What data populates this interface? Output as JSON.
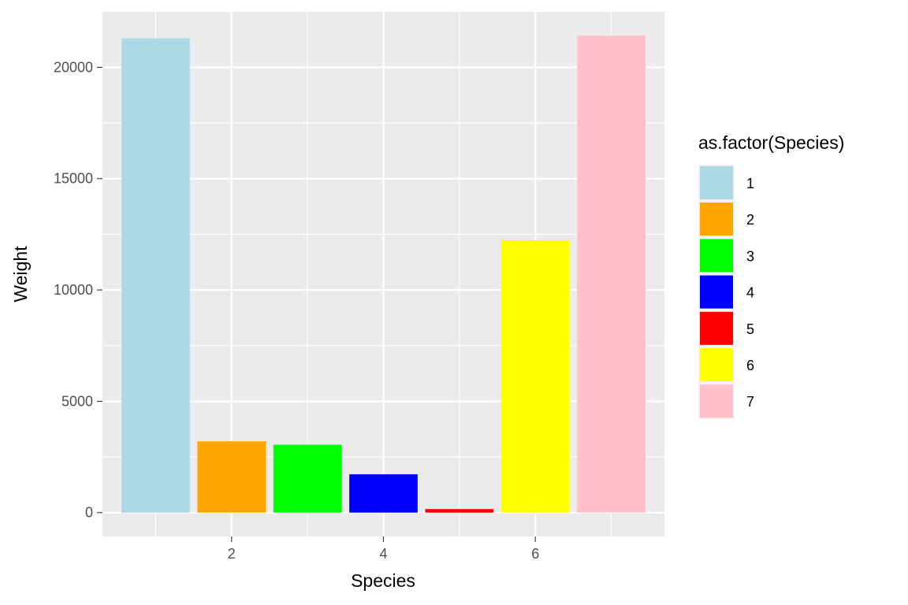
{
  "chart_data": {
    "type": "bar",
    "x": [
      1,
      2,
      3,
      4,
      5,
      6,
      7
    ],
    "values": [
      21300,
      3200,
      3050,
      1720,
      160,
      12230,
      21420
    ],
    "colors": [
      "#ADD8E6",
      "#FFA500",
      "#00FF00",
      "#0000FF",
      "#FF0000",
      "#FFFF00",
      "#FFC0CB"
    ],
    "xlabel": "Species",
    "ylabel": "Weight",
    "xlim": [
      0.3,
      7.7
    ],
    "ylim": [
      -1071,
      22491
    ],
    "x_ticks": [
      2,
      4,
      6
    ],
    "x_tick_labels": [
      "2",
      "4",
      "6"
    ],
    "y_ticks": [
      0,
      5000,
      10000,
      15000,
      20000
    ],
    "y_tick_labels": [
      "0",
      "5000",
      "10000",
      "15000",
      "20000"
    ],
    "legend": {
      "title": "as.factor(Species)",
      "placement": "right",
      "entries": [
        "1",
        "2",
        "3",
        "4",
        "5",
        "6",
        "7"
      ]
    },
    "grid": true,
    "panel_background": "#EBEBEB",
    "grid_color": "#FFFFFF"
  }
}
